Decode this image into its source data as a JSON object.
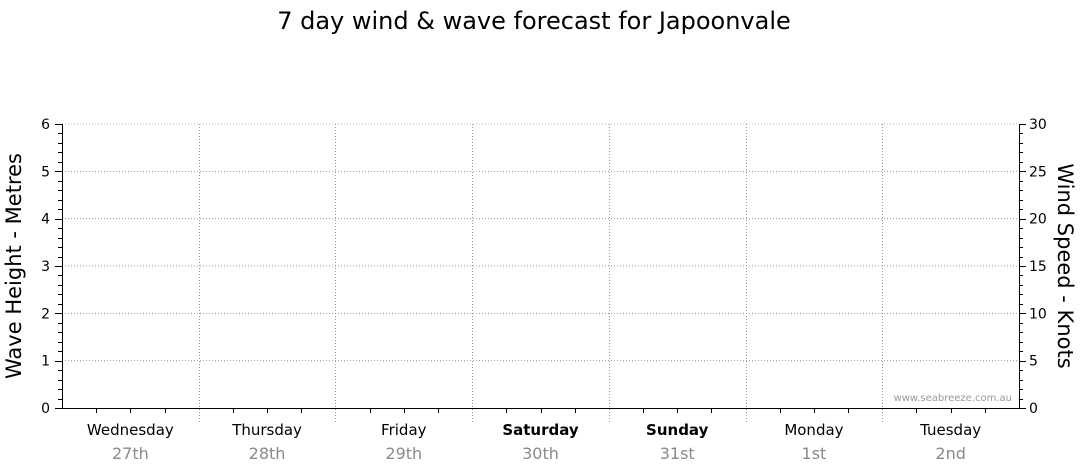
{
  "chart_data": {
    "type": "line",
    "title": "7 day wind & wave forecast for Japoonvale",
    "ylabel_left": "Wave Height - Metres",
    "ylabel_right": "Wind Speed - Knots",
    "ylim_left": [
      0,
      6
    ],
    "ylim_right": [
      0,
      30
    ],
    "yticks_left": [
      "0",
      "1",
      "2",
      "3",
      "4",
      "5",
      "6"
    ],
    "yticks_right": [
      "0",
      "5",
      "10",
      "15",
      "20",
      "25",
      "30"
    ],
    "grid": true,
    "days": [
      {
        "name": "Wednesday",
        "date": "27th",
        "bold": false
      },
      {
        "name": "Thursday",
        "date": "28th",
        "bold": false
      },
      {
        "name": "Friday",
        "date": "29th",
        "bold": false
      },
      {
        "name": "Saturday",
        "date": "30th",
        "bold": true
      },
      {
        "name": "Sunday",
        "date": "31st",
        "bold": true
      },
      {
        "name": "Monday",
        "date": "1st",
        "bold": false
      },
      {
        "name": "Tuesday",
        "date": "2nd",
        "bold": false
      }
    ],
    "series": [],
    "watermark": "www.seabreeze.com.au"
  }
}
